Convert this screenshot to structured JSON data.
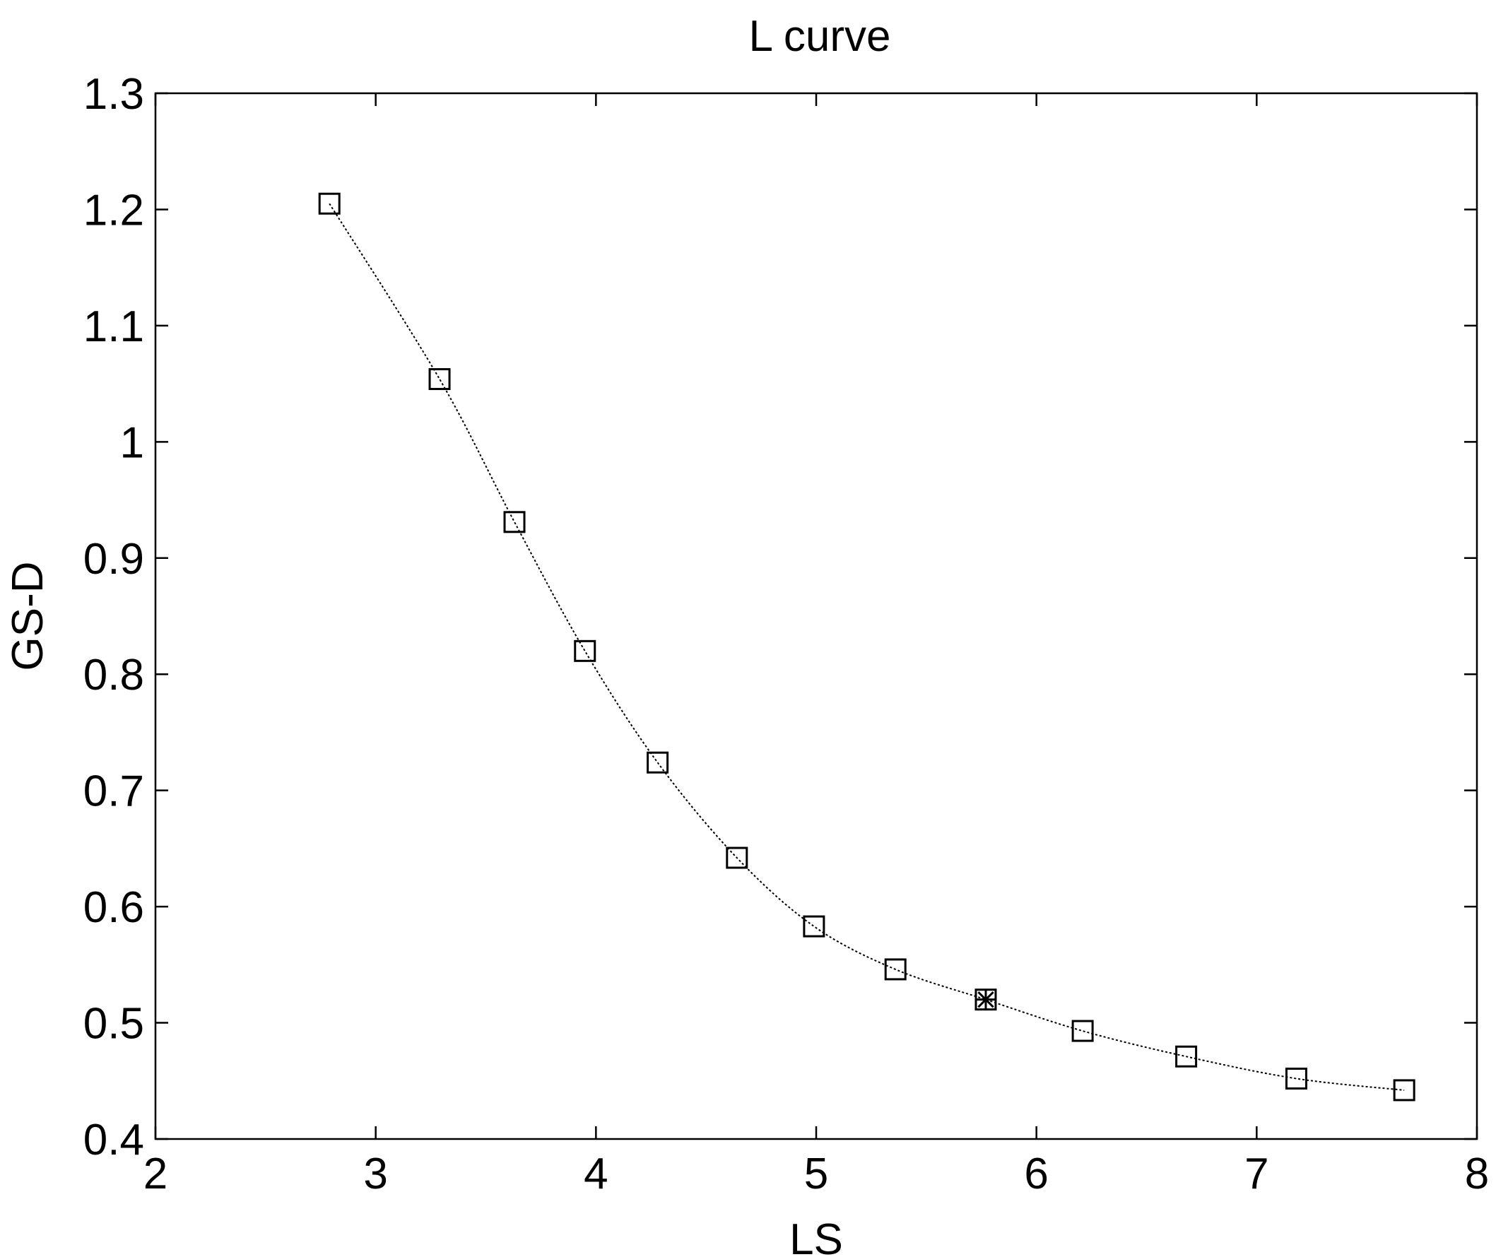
{
  "chart_data": {
    "type": "line",
    "title": "L curve",
    "xlabel": "LS",
    "ylabel": "GS-D",
    "xlim": [
      2,
      8
    ],
    "ylim": [
      0.4,
      1.3
    ],
    "xticks": [
      "2",
      "3",
      "4",
      "5",
      "6",
      "7",
      "8"
    ],
    "yticks": [
      "0.4",
      "0.5",
      "0.6",
      "0.7",
      "0.8",
      "0.9",
      "1",
      "1.1",
      "1.2",
      "1.3"
    ],
    "grid": false,
    "legend": "none",
    "series": [
      {
        "marker": "square",
        "line_style": "dotted",
        "color": "#000000",
        "x": [
          2.79,
          3.29,
          3.63,
          3.95,
          4.28,
          4.64,
          4.99,
          5.36,
          5.77,
          6.21,
          6.68,
          7.18,
          7.67
        ],
        "y": [
          1.205,
          1.054,
          0.931,
          0.82,
          0.724,
          0.642,
          0.583,
          0.546,
          0.52,
          0.493,
          0.471,
          0.452,
          0.442
        ]
      }
    ],
    "highlight": {
      "marker": "asterisk",
      "x": 5.77,
      "y": 0.52
    }
  }
}
